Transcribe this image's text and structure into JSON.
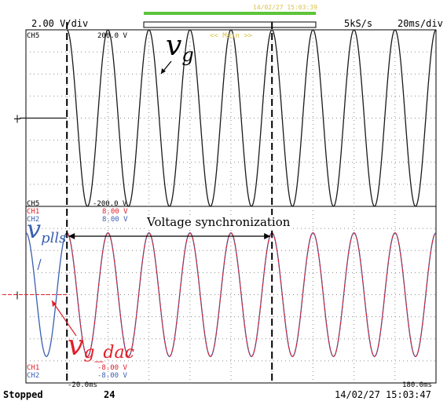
{
  "header": {
    "volts_div": "2.00 V/div",
    "timestamp": "14/02/27 15:03:39",
    "sample_rate": "5kS/s",
    "time_div": "20ms/div"
  },
  "upper_panel": {
    "channel_top": "CH5",
    "top_value": "200.0 V",
    "zoom_label": "<< Main >>",
    "channel_bottom": "CH5",
    "bottom_value": "-200.0 V"
  },
  "lower_panel": {
    "top_channels": [
      {
        "name": "CH1",
        "value": "8.00 V",
        "color": "#e0202a"
      },
      {
        "name": "CH2",
        "value": "8.00 V",
        "color": "#3a5fb0"
      }
    ],
    "bottom_channels": [
      {
        "name": "CH1",
        "value": "-8.00 V",
        "color": "#e0202a"
      },
      {
        "name": "CH2",
        "value": "-8.00 V",
        "color": "#3a5fb0"
      }
    ]
  },
  "annotations": {
    "vg_main": "v",
    "vg_sub": "g",
    "vpll_main": "v",
    "vpll_sub": "plls",
    "vgdac_main": "v",
    "vgdac_sub": "g_dac",
    "sync_label": "Voltage synchronization"
  },
  "footer": {
    "status": "Stopped",
    "count": "24",
    "time_start": "-20.0ms",
    "time_end": "180.0ms",
    "timestamp": "14/02/27 15:03:47"
  },
  "colors": {
    "vg": "#1a1a1a",
    "vpll": "#3a5fb0",
    "vgdac": "#e0202a",
    "grid": "#8c8c8c",
    "trigger_bar": "#5dc43a"
  },
  "chart_data": [
    {
      "type": "line",
      "series": [
        {
          "name": "v_g",
          "frequency_hz": 50,
          "amplitude": 200,
          "x_start": -20,
          "x_end": 180
        }
      ],
      "x_unit": "ms",
      "xlim": [
        -20,
        180
      ],
      "ylim": [
        -200,
        200
      ],
      "ylabel": "",
      "grid": true
    },
    {
      "type": "line",
      "series": [
        {
          "name": "v_plls",
          "frequency_hz": 50,
          "amplitude": 5.6,
          "x_start": -20,
          "x_end": 180
        },
        {
          "name": "v_g_dac",
          "frequency_hz": 50,
          "amplitude": 5.6,
          "x_start": 0,
          "x_end": 180
        }
      ],
      "x_unit": "ms",
      "xlim": [
        -20,
        180
      ],
      "ylim": [
        -8,
        8
      ],
      "sync_window_ms": [
        0,
        100
      ],
      "grid": true
    }
  ]
}
